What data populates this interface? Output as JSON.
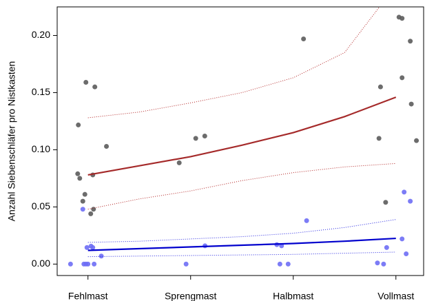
{
  "chart_data": {
    "type": "scatter",
    "y_label": "Anzahl Siebenschläfer pro Nistkasten",
    "xlim": [
      0.7,
      4.27
    ],
    "ylim": [
      -0.01,
      0.225
    ],
    "xticks": [
      {
        "value": 1,
        "label": "Fehlmast"
      },
      {
        "value": 2,
        "label": "Sprengmast"
      },
      {
        "value": 3,
        "label": "Halbmast"
      },
      {
        "value": 4,
        "label": "Vollmast"
      }
    ],
    "yticks": [
      {
        "value": 0,
        "label": "0.00"
      },
      {
        "value": 0.05,
        "label": "0.05"
      },
      {
        "value": 0.1,
        "label": "0.10"
      },
      {
        "value": 0.15,
        "label": "0.15"
      },
      {
        "value": 0.2,
        "label": "0.20"
      }
    ],
    "series": [
      {
        "mode": "markers",
        "color": "#5c5c5c",
        "x": [
          0.906,
          0.98,
          1.067,
          1.18,
          0.9,
          0.92,
          0.97,
          0.95,
          1.047,
          1.054,
          1.027,
          1.889,
          2.05,
          2.138,
          3.1,
          4.03,
          4.06,
          4.14,
          4.06,
          3.85,
          4.15,
          3.835,
          4.2,
          3.9
        ],
        "values": [
          0.1217,
          0.159,
          0.155,
          0.103,
          0.079,
          0.075,
          0.061,
          0.055,
          0.078,
          0.048,
          0.044,
          0.0886,
          0.11,
          0.112,
          0.197,
          0.216,
          0.215,
          0.195,
          0.163,
          0.155,
          0.14,
          0.11,
          0.108,
          0.054
        ]
      },
      {
        "mode": "markers",
        "color": "#6e6ef5",
        "x": [
          0.83,
          0.95,
          0.96,
          0.98,
          0.99,
          1.0,
          1.03,
          1.047,
          1.06,
          1.13,
          1.956,
          2.14,
          2.84,
          2.886,
          2.87,
          2.95,
          3.13,
          3.82,
          3.88,
          3.91,
          4.06,
          4.08,
          4.1,
          4.14
        ],
        "values": [
          0,
          0.048,
          0,
          0,
          0.0145,
          0,
          0.0157,
          0.0145,
          0,
          0.007,
          0,
          0.016,
          0.017,
          0.016,
          0,
          0,
          0.038,
          0.001,
          0,
          0.0145,
          0.022,
          0.063,
          0.009,
          0.055
        ]
      },
      {
        "mode": "line",
        "color": "#a52a2a",
        "x": [
          1,
          1.5,
          2,
          2.5,
          3,
          3.5,
          4
        ],
        "values": [
          0.078,
          0.086,
          0.094,
          0.104,
          0.115,
          0.129,
          0.146
        ]
      },
      {
        "mode": "dotted",
        "color": "#b22222",
        "x": [
          1,
          1.5,
          2,
          2.5,
          3,
          3.5,
          3.84
        ],
        "values": [
          0.128,
          0.133,
          0.141,
          0.15,
          0.163,
          0.185,
          0.225
        ]
      },
      {
        "mode": "dotted",
        "color": "#b22222",
        "x": [
          1,
          1.5,
          2,
          2.5,
          3,
          3.5,
          4
        ],
        "values": [
          0.048,
          0.057,
          0.064,
          0.073,
          0.08,
          0.085,
          0.088
        ]
      },
      {
        "mode": "line",
        "color": "#0000cd",
        "x": [
          1,
          1.5,
          2,
          2.5,
          3,
          3.5,
          4
        ],
        "values": [
          0.012,
          0.0135,
          0.015,
          0.0165,
          0.018,
          0.02,
          0.0225
        ]
      },
      {
        "mode": "dotted",
        "color": "#2020e0",
        "x": [
          1,
          1.5,
          2,
          2.5,
          3,
          3.5,
          4
        ],
        "values": [
          0.019,
          0.02,
          0.022,
          0.024,
          0.027,
          0.032,
          0.039
        ]
      },
      {
        "mode": "dotted",
        "color": "#2020e0",
        "x": [
          1,
          1.5,
          2,
          2.5,
          3,
          3.5,
          4
        ],
        "values": [
          0.0065,
          0.007,
          0.0075,
          0.008,
          0.0085,
          0.0095,
          0.0105
        ]
      }
    ]
  }
}
